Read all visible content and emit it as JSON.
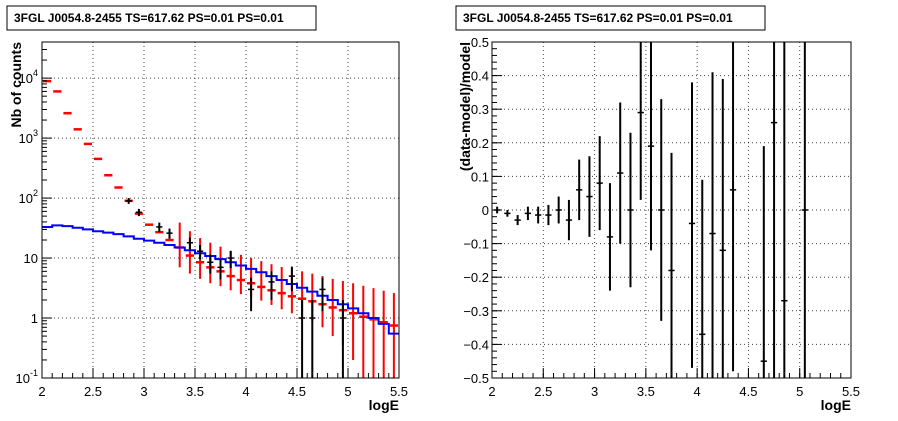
{
  "chart_data": [
    {
      "type": "histogram",
      "title": "3FGL J0054.8-2455 TS=617.62 PS=0.01 PS=0.01",
      "xlabel": "logE",
      "ylabel": "Nb of counts",
      "xlim": [
        2,
        5.5
      ],
      "ylim": [
        0.1,
        40000
      ],
      "yscale": "log",
      "grid": true,
      "x_ticks": [
        "2",
        "2.5",
        "3",
        "3.5",
        "4",
        "4.5",
        "5",
        "5.5"
      ],
      "y_ticks": [
        {
          "value": 0.1,
          "label": "10",
          "exp": "-1"
        },
        {
          "value": 1,
          "label": "1",
          "exp": ""
        },
        {
          "value": 10,
          "label": "10",
          "exp": ""
        },
        {
          "value": 100,
          "label": "10",
          "exp": "2"
        },
        {
          "value": 1000,
          "label": "10",
          "exp": "3"
        },
        {
          "value": 10000,
          "label": "10",
          "exp": "4"
        }
      ],
      "bin_width": 0.1,
      "bin_centers": [
        2.05,
        2.15,
        2.25,
        2.35,
        2.45,
        2.55,
        2.65,
        2.75,
        2.85,
        2.95,
        3.05,
        3.15,
        3.25,
        3.35,
        3.45,
        3.55,
        3.65,
        3.75,
        3.85,
        3.95,
        4.05,
        4.15,
        4.25,
        4.35,
        4.45,
        4.55,
        4.65,
        4.75,
        4.85,
        4.95,
        5.05,
        5.15,
        5.25,
        5.35,
        5.45
      ],
      "series": [
        {
          "role": "model_total",
          "color": "#ff0000",
          "values": [
            8900,
            6000,
            2600,
            1400,
            800,
            450,
            240,
            150,
            90,
            55,
            36,
            27,
            20,
            15,
            11,
            8.5,
            7,
            6,
            5,
            4.3,
            3.8,
            3.3,
            2.9,
            2.6,
            2.3,
            2.1,
            1.9,
            1.7,
            1.5,
            1.35,
            1.2,
            1.05,
            0.95,
            0.85,
            0.75
          ],
          "err_lo": [
            null,
            null,
            null,
            null,
            null,
            null,
            null,
            null,
            null,
            null,
            null,
            null,
            null,
            8,
            5.5,
            4,
            3.2,
            2.6,
            2.1,
            1.8,
            1.6,
            1.35,
            1.25,
            1.2,
            1.1,
            1.1,
            1.0,
            1.0,
            1.0,
            1.0,
            1.0,
            1.0,
            0.95,
            0.85,
            0.75
          ],
          "err_hi": [
            null,
            null,
            null,
            null,
            null,
            null,
            null,
            null,
            null,
            null,
            null,
            null,
            null,
            24,
            17,
            13,
            11,
            9.5,
            8,
            7,
            6.3,
            5.6,
            5,
            4.5,
            4.2,
            3.9,
            3.6,
            3.3,
            3.0,
            2.8,
            2.6,
            2.4,
            2.2,
            2.0,
            1.85
          ]
        },
        {
          "role": "source_model",
          "color": "#0000ff",
          "values": [
            33,
            35,
            34,
            32,
            30,
            28,
            26.5,
            25,
            23,
            21,
            19.5,
            18,
            16.5,
            15,
            13.5,
            12,
            10.8,
            9.6,
            8.5,
            7.5,
            6.6,
            5.8,
            5.0,
            4.3,
            3.7,
            3.2,
            2.75,
            2.35,
            2.0,
            1.7,
            1.45,
            1.2,
            1.0,
            0.8,
            0.55
          ]
        },
        {
          "role": "data",
          "color": "#000000",
          "points": [
            {
              "x": 2.85,
              "y": 90,
              "lo": 80,
              "hi": 100
            },
            {
              "x": 2.95,
              "y": 58,
              "lo": 50,
              "hi": 66
            },
            {
              "x": 3.15,
              "y": 33,
              "lo": 27,
              "hi": 39
            },
            {
              "x": 3.25,
              "y": 26,
              "lo": 21,
              "hi": 31
            },
            {
              "x": 3.45,
              "y": 18,
              "lo": 14,
              "hi": 22
            },
            {
              "x": 3.55,
              "y": 13,
              "lo": 9.5,
              "hi": 16.5
            },
            {
              "x": 3.65,
              "y": 8.5,
              "lo": 5.5,
              "hi": 11.5
            },
            {
              "x": 3.75,
              "y": 7,
              "lo": 4.4,
              "hi": 9.6
            },
            {
              "x": 3.85,
              "y": 10,
              "lo": 6.8,
              "hi": 13.2
            },
            {
              "x": 4.05,
              "y": 3,
              "lo": 1.3,
              "hi": 4.7
            },
            {
              "x": 4.25,
              "y": 4,
              "lo": 2,
              "hi": 6
            },
            {
              "x": 4.45,
              "y": 5,
              "lo": 2.8,
              "hi": 7.2
            },
            {
              "x": 4.55,
              "y": 1,
              "lo": 0.1,
              "hi": 2
            },
            {
              "x": 4.65,
              "y": 1,
              "lo": 0.1,
              "hi": 2
            },
            {
              "x": 4.75,
              "y": 3,
              "lo": 1.3,
              "hi": 4.7
            },
            {
              "x": 4.95,
              "y": 1,
              "lo": 0.1,
              "hi": 2
            }
          ]
        }
      ]
    },
    {
      "type": "scatter",
      "title": "3FGL J0054.8-2455 TS=617.62 PS=0.01 PS=0.01",
      "xlabel": "logE",
      "ylabel": "(data-model)/model",
      "xlim": [
        2,
        5.5
      ],
      "ylim": [
        -0.5,
        0.5
      ],
      "grid": true,
      "x_ticks": [
        "2",
        "2.5",
        "3",
        "3.5",
        "4",
        "4.5",
        "5",
        "5.5"
      ],
      "y_ticks": [
        "−0.5",
        "−0.4",
        "−0.3",
        "−0.2",
        "−0.1",
        "0",
        "0.1",
        "0.2",
        "0.3",
        "0.4",
        "0.5"
      ],
      "series": [
        {
          "color": "#000000",
          "points": [
            {
              "x": 2.05,
              "y": 0.0,
              "lo": -0.01,
              "hi": 0.01
            },
            {
              "x": 2.15,
              "y": -0.01,
              "lo": -0.02,
              "hi": 0.0
            },
            {
              "x": 2.25,
              "y": -0.03,
              "lo": -0.045,
              "hi": -0.015
            },
            {
              "x": 2.35,
              "y": -0.01,
              "lo": -0.03,
              "hi": 0.01
            },
            {
              "x": 2.45,
              "y": -0.015,
              "lo": -0.04,
              "hi": 0.01
            },
            {
              "x": 2.55,
              "y": -0.015,
              "lo": -0.045,
              "hi": 0.015
            },
            {
              "x": 2.65,
              "y": 0.0,
              "lo": -0.04,
              "hi": 0.04
            },
            {
              "x": 2.75,
              "y": -0.03,
              "lo": -0.09,
              "hi": 0.03
            },
            {
              "x": 2.85,
              "y": 0.06,
              "lo": -0.03,
              "hi": 0.15
            },
            {
              "x": 2.95,
              "y": 0.04,
              "lo": -0.08,
              "hi": 0.16
            },
            {
              "x": 3.05,
              "y": 0.08,
              "lo": -0.06,
              "hi": 0.22
            },
            {
              "x": 3.15,
              "y": -0.08,
              "lo": -0.24,
              "hi": 0.08
            },
            {
              "x": 3.25,
              "y": 0.11,
              "lo": -0.1,
              "hi": 0.32
            },
            {
              "x": 3.35,
              "y": 0.0,
              "lo": -0.23,
              "hi": 0.23
            },
            {
              "x": 3.45,
              "y": 0.29,
              "lo": 0.03,
              "hi": 0.5
            },
            {
              "x": 3.55,
              "y": 0.19,
              "lo": -0.12,
              "hi": 0.5
            },
            {
              "x": 3.65,
              "y": 0.0,
              "lo": -0.33,
              "hi": 0.33
            },
            {
              "x": 3.75,
              "y": -0.18,
              "lo": -0.5,
              "hi": 0.17
            },
            {
              "x": 3.95,
              "y": -0.04,
              "lo": -0.47,
              "hi": 0.38
            },
            {
              "x": 4.05,
              "y": -0.37,
              "lo": -0.5,
              "hi": 0.09
            },
            {
              "x": 4.15,
              "y": -0.07,
              "lo": -0.5,
              "hi": 0.41
            },
            {
              "x": 4.25,
              "y": -0.12,
              "lo": -0.5,
              "hi": 0.39
            },
            {
              "x": 4.35,
              "y": 0.06,
              "lo": -0.48,
              "hi": 0.5
            },
            {
              "x": 4.65,
              "y": -0.45,
              "lo": -0.5,
              "hi": 0.19
            },
            {
              "x": 4.75,
              "y": 0.26,
              "lo": -0.5,
              "hi": 0.5
            },
            {
              "x": 4.85,
              "y": -0.27,
              "lo": -0.5,
              "hi": 0.5
            },
            {
              "x": 5.05,
              "y": 0.0,
              "lo": -0.5,
              "hi": 0.5
            }
          ]
        }
      ]
    }
  ]
}
